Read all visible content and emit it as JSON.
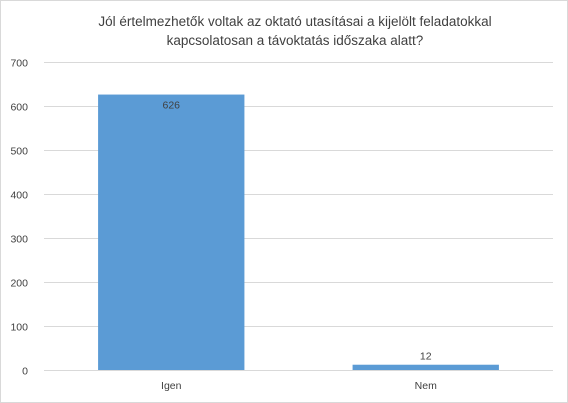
{
  "chart_data": {
    "type": "bar",
    "title_lines": [
      "Jól értelmezhetők voltak az oktató utasításai a kijelölt feladatokkal",
      "kapcsolatosan a távoktatás időszaka alatt?"
    ],
    "categories": [
      "Igen",
      "Nem"
    ],
    "values": [
      626,
      12
    ],
    "data_labels": [
      "626",
      "12"
    ],
    "ylim": [
      0,
      700
    ],
    "yticks": [
      0,
      100,
      200,
      300,
      400,
      500,
      600,
      700
    ],
    "xlabel": "",
    "ylabel": "",
    "grid": true,
    "legend": "none",
    "bar_color": "#5b9bd5",
    "grid_color": "#d9d9d9",
    "text_color": "#404040"
  }
}
